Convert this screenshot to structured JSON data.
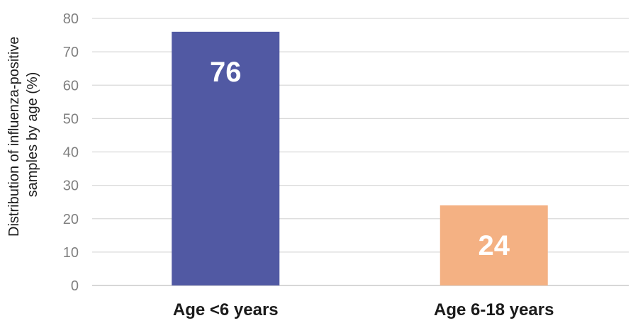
{
  "chart_data": {
    "type": "bar",
    "categories": [
      "Age <6 years",
      "Age 6-18 years"
    ],
    "values": [
      76,
      24
    ],
    "data_labels": [
      "76",
      "24"
    ],
    "colors": [
      "#5159a3",
      "#f4b183"
    ],
    "title": "",
    "xlabel": "",
    "ylabel_lines": [
      "Distribution of influenza-positive",
      "samples by age (%)"
    ],
    "ylim": [
      0,
      80
    ],
    "yticks": [
      "0",
      "10",
      "20",
      "30",
      "40",
      "50",
      "60",
      "70",
      "80"
    ],
    "grid": true,
    "legend": "none"
  }
}
